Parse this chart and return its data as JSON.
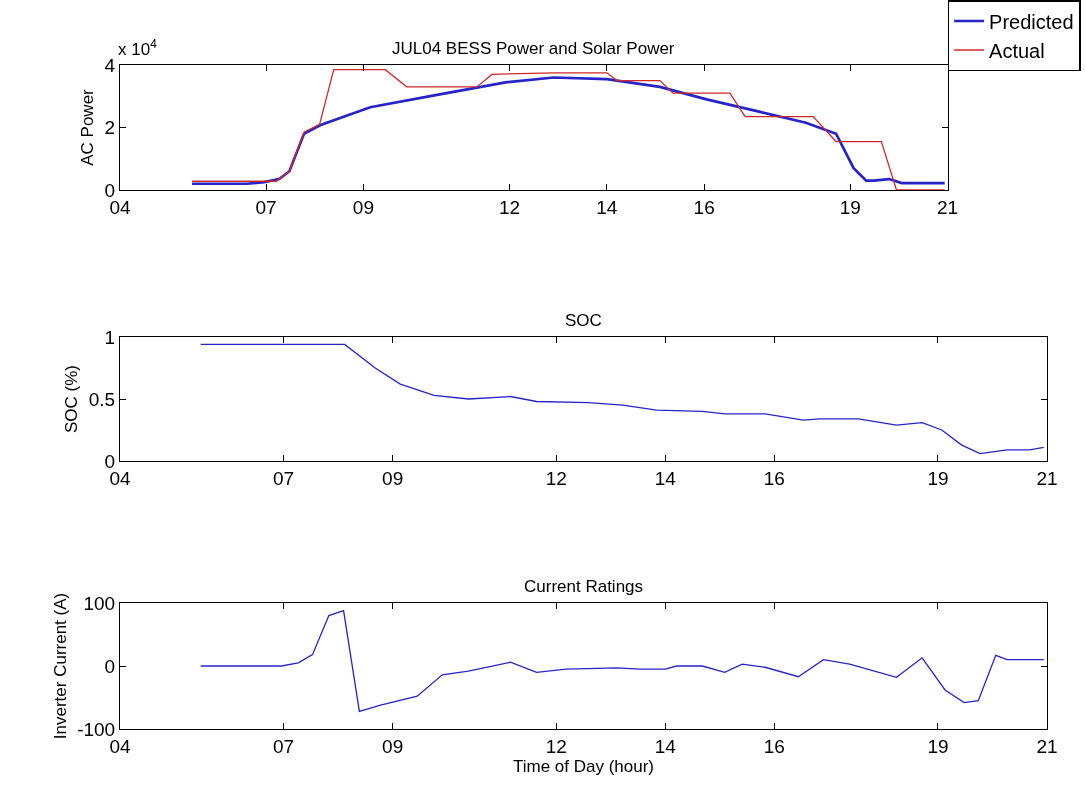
{
  "chart_data": [
    {
      "type": "line",
      "title": "JUL04 BESS Power and Solar Power",
      "ylabel": "AC Power",
      "annotations": [
        "x 10$^{4}$"
      ],
      "legend": "top right",
      "xlim": [
        4,
        21
      ],
      "xticks": [
        {
          "value": 4,
          "label": "04"
        },
        {
          "value": 7,
          "label": "07"
        },
        {
          "value": 9,
          "label": "09"
        },
        12,
        14,
        16,
        19,
        21
      ],
      "ylim": [
        0,
        4
      ],
      "yticks": [
        0,
        2,
        4
      ],
      "series": [
        {
          "name": "Predicted",
          "color": "#2424c8",
          "x": [
            5.48,
            6.61,
            6.96,
            7.27,
            7.48,
            7.78,
            8.15,
            9.14,
            10.54,
            11.95,
            12.91,
            14,
            15.09,
            16.05,
            17.15,
            18.09,
            18.71,
            19.07,
            19.33,
            19.48,
            19.8,
            20.06,
            20.94
          ],
          "values": [
            0.2,
            0.2,
            0.25,
            0.35,
            0.6,
            1.8,
            2.1,
            2.65,
            3.05,
            3.45,
            3.6,
            3.55,
            3.3,
            2.9,
            2.5,
            2.15,
            1.8,
            0.7,
            0.3,
            0.3,
            0.35,
            0.22,
            0.22
          ]
        },
        {
          "name": "Actual",
          "color": "#d02828",
          "x": [
            5.48,
            7.21,
            7.48,
            7.78,
            8.1,
            8.39,
            9.45,
            9.89,
            11.33,
            11.64,
            12.91,
            14,
            14.21,
            15.09,
            15.36,
            16.53,
            16.84,
            18.24,
            18.71,
            19.64,
            19.95,
            20.94
          ],
          "values": [
            0.28,
            0.28,
            0.6,
            1.85,
            2.1,
            3.85,
            3.85,
            3.3,
            3.3,
            3.7,
            3.75,
            3.75,
            3.5,
            3.5,
            3.1,
            3.1,
            2.35,
            2.35,
            1.55,
            1.55,
            0,
            0
          ]
        }
      ]
    },
    {
      "type": "line",
      "title": "SOC",
      "ylabel": "SOC (%)",
      "xlim": [
        4,
        21
      ],
      "xticks": [
        {
          "value": 4,
          "label": "04"
        },
        {
          "value": 7,
          "label": "07"
        },
        {
          "value": 9,
          "label": "09"
        },
        12,
        14,
        16,
        19,
        21
      ],
      "ylim": [
        0,
        1
      ],
      "yticks": [
        0,
        0.5,
        1
      ],
      "series": [
        {
          "color": "#2424c8",
          "x": [
            5.48,
            8.12,
            8.68,
            9.14,
            9.76,
            10.39,
            11.16,
            11.64,
            12.59,
            13.22,
            13.84,
            14.68,
            15.09,
            15.83,
            16.53,
            16.84,
            17.54,
            18.24,
            18.71,
            19.07,
            19.43,
            19.77,
            20.27,
            20.68,
            20.94
          ],
          "values": [
            0.94,
            0.94,
            0.75,
            0.62,
            0.53,
            0.5,
            0.52,
            0.48,
            0.47,
            0.45,
            0.41,
            0.4,
            0.38,
            0.38,
            0.33,
            0.34,
            0.34,
            0.29,
            0.31,
            0.25,
            0.13,
            0.06,
            0.09,
            0.09,
            0.11
          ]
        }
      ]
    },
    {
      "type": "line",
      "title": "Current Ratings",
      "ylabel": "Inverter Current (A)",
      "xlabel": "Time of Day (hour)",
      "xlim": [
        4,
        21
      ],
      "xticks": [
        {
          "value": 4,
          "label": "04"
        },
        {
          "value": 7,
          "label": "07"
        },
        {
          "value": 9,
          "label": "09"
        },
        12,
        14,
        16,
        19,
        21
      ],
      "ylim": [
        -100,
        100
      ],
      "yticks": [
        -100,
        0,
        100
      ],
      "series": [
        {
          "color": "#2424c8",
          "x": [
            5.48,
            6.96,
            7.27,
            7.53,
            7.83,
            8.1,
            8.39,
            8.78,
            9.45,
            9.91,
            10.39,
            11.16,
            11.64,
            12.18,
            13.12,
            13.53,
            14,
            14.21,
            14.68,
            15.09,
            15.41,
            15.83,
            16.44,
            16.9,
            17.38,
            18.24,
            18.71,
            19.13,
            19.48,
            19.74,
            20.06,
            20.27,
            20.94
          ],
          "values": [
            0,
            0,
            5,
            18,
            80,
            88,
            -72,
            -62,
            -48,
            -14,
            -8,
            6,
            -10,
            -5,
            -3,
            -5,
            -5,
            0,
            0,
            -10,
            3,
            -2,
            -17,
            10,
            3,
            -18,
            13,
            -38,
            -58,
            -55,
            17,
            10,
            10
          ]
        }
      ]
    }
  ]
}
